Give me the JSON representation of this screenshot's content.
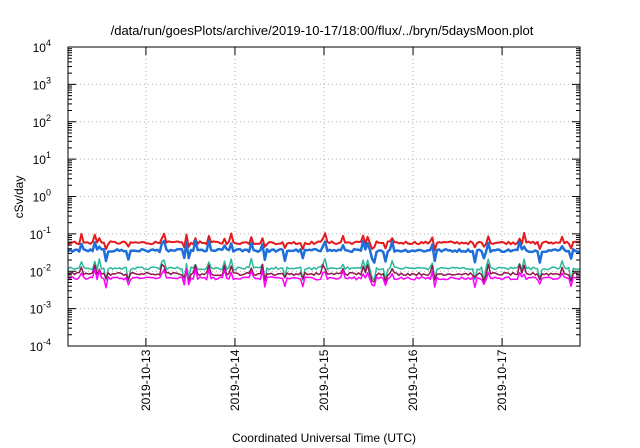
{
  "chart_data": {
    "type": "line",
    "title": "/data/run/goesPlots/archive/2019-10-17/18:00/flux/../bryn/5daysMoon.plot",
    "xlabel": "Coordinated Universal Time (UTC)",
    "ylabel": "cSv/day",
    "yscale": "log",
    "ylim": [
      0.0001,
      10000
    ],
    "xlim": [
      "2019-10-12 03:00",
      "2019-10-17 21:00"
    ],
    "grid": true,
    "x_tick_labels": [
      "2019-10-13",
      "2019-10-14",
      "2019-10-15",
      "2019-10-16",
      "2019-10-17"
    ],
    "y_ticks": [
      {
        "base": "10",
        "exp": "-4",
        "value": 0.0001
      },
      {
        "base": "10",
        "exp": "-3",
        "value": 0.001
      },
      {
        "base": "10",
        "exp": "-2",
        "value": 0.01
      },
      {
        "base": "10",
        "exp": "-1",
        "value": 0.1
      },
      {
        "base": "10",
        "exp": "0",
        "value": 1
      },
      {
        "base": "10",
        "exp": "1",
        "value": 10
      },
      {
        "base": "10",
        "exp": "2",
        "value": 100
      },
      {
        "base": "10",
        "exp": "3",
        "value": 1000
      },
      {
        "base": "10",
        "exp": "4",
        "value": 10000
      }
    ],
    "series": [
      {
        "color": "#e41a1c",
        "base": 0.058,
        "dip": 0.04,
        "width": 2.0
      },
      {
        "color": "#1e6fd9",
        "base": 0.036,
        "dip": 0.02,
        "width": 2.5
      },
      {
        "color": "#2ab89a",
        "base": 0.012,
        "dip": 0.006,
        "width": 1.5
      },
      {
        "color": "#8b1a4a",
        "base": 0.0085,
        "dip": 0.006,
        "width": 1.5
      },
      {
        "color": "#ff00ff",
        "base": 0.0065,
        "dip": 0.004,
        "width": 1.5
      }
    ]
  }
}
